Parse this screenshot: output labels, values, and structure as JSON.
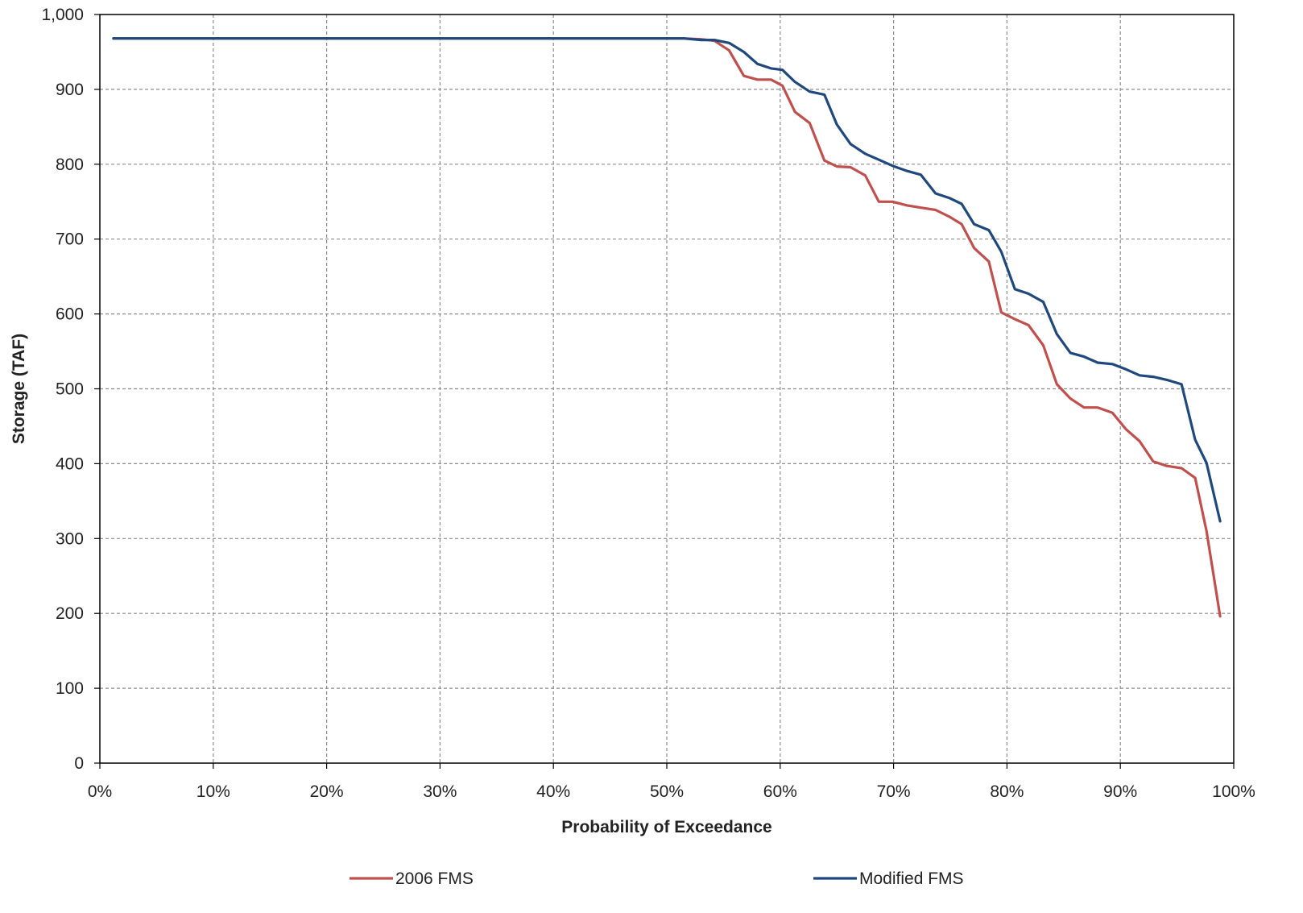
{
  "chart_data": {
    "type": "line",
    "xlabel": "Probability of Exceedance",
    "ylabel": "Storage (TAF)",
    "xlim": [
      0,
      100
    ],
    "ylim": [
      0,
      1000
    ],
    "x_unit": "%",
    "x_ticks": [
      0,
      10,
      20,
      30,
      40,
      50,
      60,
      70,
      80,
      90,
      100
    ],
    "x_tick_labels": [
      "0%",
      "10%",
      "20%",
      "30%",
      "40%",
      "50%",
      "60%",
      "70%",
      "80%",
      "90%",
      "100%"
    ],
    "y_ticks": [
      0,
      100,
      200,
      300,
      400,
      500,
      600,
      700,
      800,
      900,
      1000
    ],
    "y_tick_labels": [
      "0",
      "100",
      "200",
      "300",
      "400",
      "500",
      "600",
      "700",
      "800",
      "900",
      "1,000"
    ],
    "grid": true,
    "legend_position": "bottom",
    "series": [
      {
        "name": "2006 FMS",
        "color": "#c0504d",
        "points": [
          [
            1.2,
            968
          ],
          [
            10,
            968
          ],
          [
            20,
            968
          ],
          [
            30,
            968
          ],
          [
            40,
            968
          ],
          [
            50,
            968
          ],
          [
            51.5,
            968
          ],
          [
            53,
            967
          ],
          [
            54.2,
            965
          ],
          [
            55.5,
            952
          ],
          [
            56.8,
            918
          ],
          [
            58,
            913
          ],
          [
            59.2,
            913
          ],
          [
            60.2,
            905
          ],
          [
            61.3,
            870
          ],
          [
            62.6,
            855
          ],
          [
            63.9,
            805
          ],
          [
            65,
            797
          ],
          [
            66.2,
            796
          ],
          [
            67.5,
            785
          ],
          [
            68.7,
            750
          ],
          [
            69.9,
            750
          ],
          [
            71.2,
            745
          ],
          [
            72.4,
            742
          ],
          [
            73.7,
            739
          ],
          [
            74.9,
            730
          ],
          [
            76,
            720
          ],
          [
            77.1,
            688
          ],
          [
            78.4,
            670
          ],
          [
            79.5,
            602
          ],
          [
            80.7,
            593
          ],
          [
            81.9,
            585
          ],
          [
            83.2,
            558
          ],
          [
            84.4,
            506
          ],
          [
            85.6,
            487
          ],
          [
            86.8,
            475
          ],
          [
            88,
            475
          ],
          [
            89.3,
            468
          ],
          [
            90.5,
            446
          ],
          [
            91.7,
            430
          ],
          [
            92.9,
            403
          ],
          [
            94.1,
            397
          ],
          [
            95.4,
            394
          ],
          [
            96.6,
            381
          ],
          [
            97.6,
            310
          ],
          [
            98.8,
            196
          ]
        ]
      },
      {
        "name": "Modified FMS",
        "color": "#1f497d",
        "points": [
          [
            1.2,
            968
          ],
          [
            10,
            968
          ],
          [
            20,
            968
          ],
          [
            30,
            968
          ],
          [
            40,
            968
          ],
          [
            50,
            968
          ],
          [
            51.5,
            968
          ],
          [
            53,
            966
          ],
          [
            54.2,
            966
          ],
          [
            55.5,
            962
          ],
          [
            56.8,
            950
          ],
          [
            58,
            934
          ],
          [
            59.2,
            928
          ],
          [
            60.2,
            926
          ],
          [
            61.3,
            910
          ],
          [
            62.6,
            897
          ],
          [
            63.9,
            893
          ],
          [
            65,
            853
          ],
          [
            66.2,
            827
          ],
          [
            67.5,
            814
          ],
          [
            68.7,
            806
          ],
          [
            69.9,
            798
          ],
          [
            71.2,
            791
          ],
          [
            72.4,
            786
          ],
          [
            73.7,
            761
          ],
          [
            74.9,
            755
          ],
          [
            76,
            747
          ],
          [
            77.1,
            720
          ],
          [
            78.4,
            712
          ],
          [
            79.5,
            683
          ],
          [
            80.7,
            633
          ],
          [
            81.9,
            627
          ],
          [
            83.2,
            616
          ],
          [
            84.4,
            573
          ],
          [
            85.6,
            548
          ],
          [
            86.8,
            543
          ],
          [
            88,
            535
          ],
          [
            89.3,
            533
          ],
          [
            90.5,
            526
          ],
          [
            91.7,
            518
          ],
          [
            92.9,
            516
          ],
          [
            94.1,
            512
          ],
          [
            95.4,
            506
          ],
          [
            96.6,
            432
          ],
          [
            97.6,
            401
          ],
          [
            98.8,
            323
          ]
        ]
      }
    ]
  }
}
